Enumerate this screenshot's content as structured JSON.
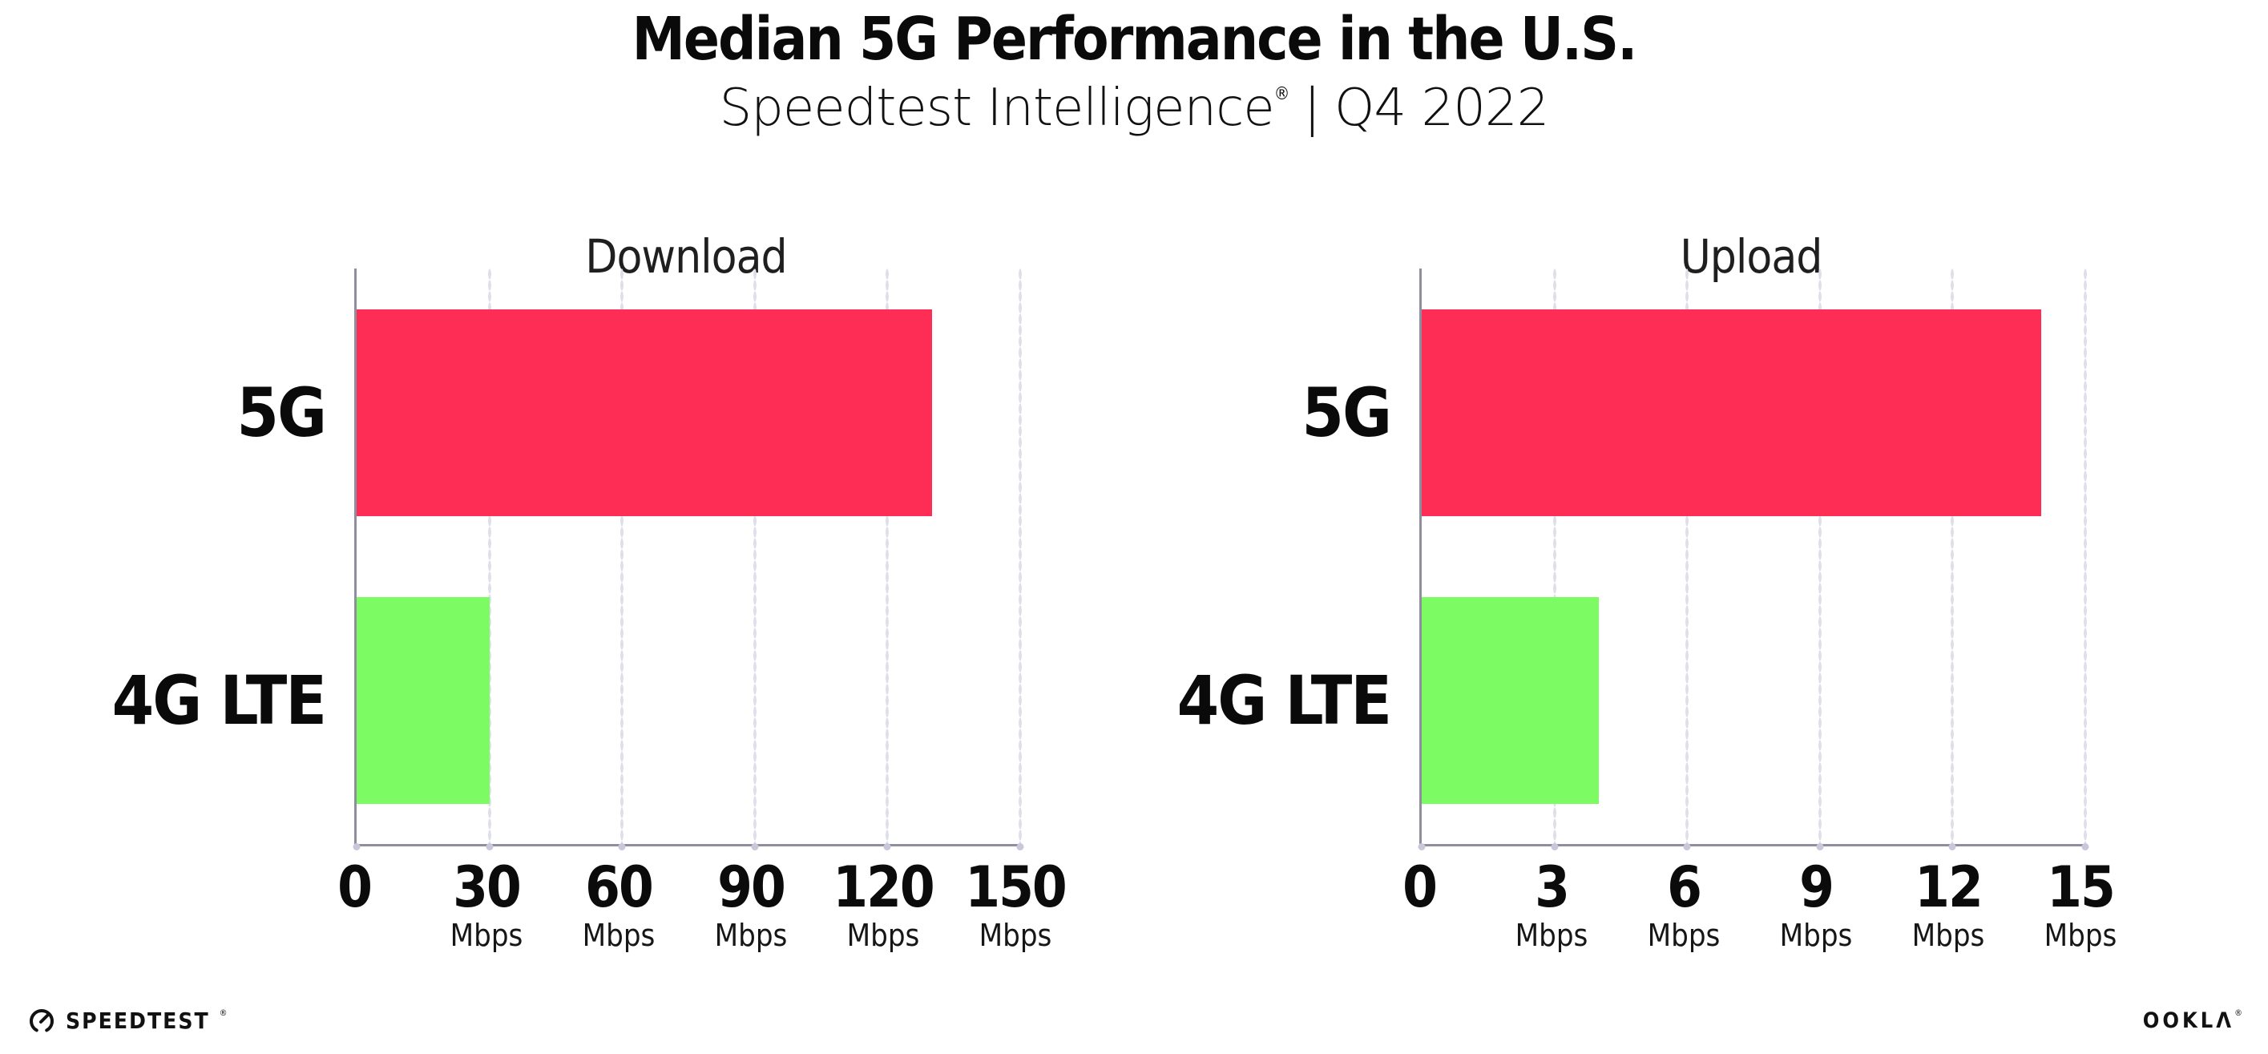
{
  "header": {
    "title": "Median 5G Performance in the U.S.",
    "subtitle": {
      "brand": "Speedtest Intelligence",
      "registered": "®",
      "separator": "|",
      "period": "Q4 2022"
    }
  },
  "chart_data": [
    {
      "type": "bar",
      "orientation": "horizontal",
      "title": "Download",
      "categories": [
        "5G",
        "4G LTE"
      ],
      "values": [
        130,
        30
      ],
      "unit": "Mbps",
      "xlim": [
        0,
        150
      ],
      "xticks": [
        0,
        30,
        60,
        90,
        120,
        150
      ],
      "tick_unit": "Mbps",
      "bar_colors": [
        "#FD2D56",
        "#7CFB62"
      ],
      "grid": "dotted-vertical",
      "legend": "none"
    },
    {
      "type": "bar",
      "orientation": "horizontal",
      "title": "Upload",
      "categories": [
        "5G",
        "4G LTE"
      ],
      "values": [
        14,
        4
      ],
      "unit": "Mbps",
      "xlim": [
        0,
        15
      ],
      "xticks": [
        0,
        3,
        6,
        9,
        12,
        15
      ],
      "tick_unit": "Mbps",
      "bar_colors": [
        "#FD2D56",
        "#7CFB62"
      ],
      "grid": "dotted-vertical",
      "legend": "none"
    }
  ],
  "footer": {
    "speedtest": {
      "label": "SPEEDTEST",
      "registered": "®"
    },
    "ookla": {
      "label": "OOKLA",
      "display": "OOKLΛ",
      "registered": "®"
    }
  },
  "colors": {
    "bar_5g": "#FD2D56",
    "bar_4g_lte": "#7CFB62",
    "grid_dots": "#DFDFEC",
    "axis_line": "#8E8E9C",
    "text": "#0A0A0A",
    "background": "#FFFFFF"
  }
}
